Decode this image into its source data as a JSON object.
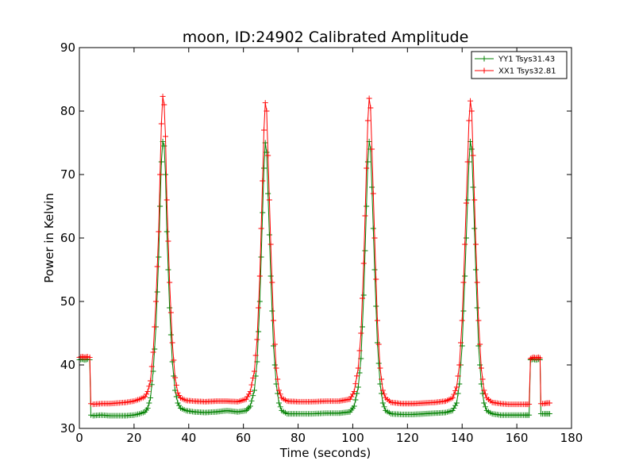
{
  "chart_data": {
    "type": "line",
    "title": "moon, ID:24902 Calibrated Amplitude",
    "xlabel": "Time (seconds)",
    "ylabel": "Power in Kelvin",
    "xlim": [
      0,
      180
    ],
    "ylim": [
      30,
      90
    ],
    "xticks": [
      "0",
      "20",
      "40",
      "60",
      "80",
      "100",
      "120",
      "140",
      "160",
      "180"
    ],
    "yticks": [
      "30",
      "40",
      "50",
      "60",
      "70",
      "80",
      "90"
    ],
    "grid": false,
    "legend_position": "top-right",
    "series": [
      {
        "name": "YY1 Tsys31.43",
        "color": "#008000",
        "marker": "plus",
        "points": [
          [
            0,
            40.8
          ],
          [
            1,
            40.9
          ],
          [
            2,
            40.8
          ],
          [
            3,
            40.9
          ],
          [
            3.8,
            40.8
          ],
          [
            4.2,
            32.1
          ],
          [
            5,
            32.0
          ],
          [
            8,
            32.1
          ],
          [
            11,
            32.0
          ],
          [
            14,
            32.0
          ],
          [
            17,
            32.0
          ],
          [
            20,
            32.1
          ],
          [
            22,
            32.3
          ],
          [
            24,
            32.6
          ],
          [
            25,
            33.2
          ],
          [
            26,
            34.8
          ],
          [
            27,
            39.0
          ],
          [
            28,
            46.0
          ],
          [
            29,
            57.0
          ],
          [
            29.5,
            65.0
          ],
          [
            30,
            72.0
          ],
          [
            30.5,
            75.2
          ],
          [
            31,
            74.5
          ],
          [
            31.5,
            70.0
          ],
          [
            32,
            61.0
          ],
          [
            33,
            49.0
          ],
          [
            34,
            40.5
          ],
          [
            35,
            36.0
          ],
          [
            36,
            34.0
          ],
          [
            37,
            33.2
          ],
          [
            39,
            32.8
          ],
          [
            42,
            32.6
          ],
          [
            46,
            32.5
          ],
          [
            50,
            32.6
          ],
          [
            54,
            32.8
          ],
          [
            58,
            32.6
          ],
          [
            61,
            32.8
          ],
          [
            62.5,
            33.5
          ],
          [
            64,
            36.0
          ],
          [
            65,
            40.5
          ],
          [
            66,
            50.0
          ],
          [
            67,
            64.0
          ],
          [
            67.5,
            71.0
          ],
          [
            68,
            75.0
          ],
          [
            68.5,
            73.5
          ],
          [
            69,
            67.0
          ],
          [
            70,
            54.0
          ],
          [
            71,
            43.0
          ],
          [
            72,
            37.0
          ],
          [
            73,
            34.0
          ],
          [
            74,
            32.8
          ],
          [
            76,
            32.3
          ],
          [
            80,
            32.3
          ],
          [
            85,
            32.3
          ],
          [
            90,
            32.4
          ],
          [
            95,
            32.4
          ],
          [
            99,
            32.6
          ],
          [
            100.5,
            33.5
          ],
          [
            102,
            36.5
          ],
          [
            103,
            41.0
          ],
          [
            104,
            51.0
          ],
          [
            105,
            65.0
          ],
          [
            105.5,
            72.0
          ],
          [
            106,
            75.2
          ],
          [
            106.5,
            74.0
          ],
          [
            107,
            68.0
          ],
          [
            108,
            55.0
          ],
          [
            109,
            43.5
          ],
          [
            110,
            37.0
          ],
          [
            111,
            34.0
          ],
          [
            112,
            32.8
          ],
          [
            114,
            32.3
          ],
          [
            118,
            32.2
          ],
          [
            122,
            32.2
          ],
          [
            126,
            32.3
          ],
          [
            130,
            32.4
          ],
          [
            134,
            32.5
          ],
          [
            136.5,
            32.8
          ],
          [
            138,
            34.0
          ],
          [
            139,
            37.0
          ],
          [
            140,
            43.0
          ],
          [
            141,
            54.0
          ],
          [
            142,
            66.0
          ],
          [
            142.5,
            72.0
          ],
          [
            143,
            75.2
          ],
          [
            143.5,
            74.0
          ],
          [
            144,
            68.0
          ],
          [
            145,
            55.0
          ],
          [
            146,
            43.0
          ],
          [
            147,
            37.0
          ],
          [
            148,
            34.0
          ],
          [
            149,
            32.8
          ],
          [
            151,
            32.3
          ],
          [
            154,
            32.1
          ],
          [
            157,
            32.1
          ],
          [
            160,
            32.1
          ],
          [
            163,
            32.1
          ],
          [
            164.5,
            32.1
          ],
          [
            165,
            40.8
          ],
          [
            166,
            40.9
          ],
          [
            167,
            40.8
          ],
          [
            168,
            40.9
          ],
          [
            168.5,
            40.8
          ],
          [
            168.8,
            32.3
          ],
          [
            170,
            32.3
          ],
          [
            171,
            32.3
          ],
          [
            172,
            32.3
          ]
        ]
      },
      {
        "name": "XX1 Tsys32.81",
        "color": "#ff0000",
        "marker": "plus",
        "points": [
          [
            0,
            41.2
          ],
          [
            1,
            41.3
          ],
          [
            2,
            41.2
          ],
          [
            3,
            41.3
          ],
          [
            3.8,
            41.2
          ],
          [
            4.2,
            33.9
          ],
          [
            5,
            33.8
          ],
          [
            8,
            33.9
          ],
          [
            11,
            33.9
          ],
          [
            14,
            34.0
          ],
          [
            17,
            34.1
          ],
          [
            20,
            34.3
          ],
          [
            22,
            34.6
          ],
          [
            24,
            35.0
          ],
          [
            25,
            35.8
          ],
          [
            26,
            37.5
          ],
          [
            27,
            42.0
          ],
          [
            28,
            50.0
          ],
          [
            29,
            61.0
          ],
          [
            29.5,
            70.0
          ],
          [
            30,
            78.0
          ],
          [
            30.5,
            82.3
          ],
          [
            31,
            81.0
          ],
          [
            31.5,
            76.0
          ],
          [
            32,
            66.0
          ],
          [
            33,
            53.0
          ],
          [
            34,
            43.5
          ],
          [
            35,
            38.0
          ],
          [
            36,
            35.6
          ],
          [
            37,
            34.8
          ],
          [
            39,
            34.4
          ],
          [
            42,
            34.3
          ],
          [
            46,
            34.2
          ],
          [
            50,
            34.3
          ],
          [
            54,
            34.3
          ],
          [
            58,
            34.2
          ],
          [
            61,
            34.6
          ],
          [
            62.5,
            35.8
          ],
          [
            64,
            39.0
          ],
          [
            65,
            44.0
          ],
          [
            66,
            54.0
          ],
          [
            67,
            69.0
          ],
          [
            67.5,
            77.0
          ],
          [
            68,
            81.3
          ],
          [
            68.5,
            80.0
          ],
          [
            69,
            73.0
          ],
          [
            70,
            59.0
          ],
          [
            71,
            47.0
          ],
          [
            72,
            39.5
          ],
          [
            73,
            36.0
          ],
          [
            74,
            34.8
          ],
          [
            76,
            34.3
          ],
          [
            80,
            34.2
          ],
          [
            85,
            34.2
          ],
          [
            90,
            34.3
          ],
          [
            95,
            34.3
          ],
          [
            99,
            34.6
          ],
          [
            100.5,
            35.8
          ],
          [
            102,
            39.5
          ],
          [
            103,
            45.0
          ],
          [
            104,
            56.0
          ],
          [
            105,
            71.0
          ],
          [
            105.5,
            78.5
          ],
          [
            106,
            82.0
          ],
          [
            106.5,
            80.5
          ],
          [
            107,
            74.0
          ],
          [
            108,
            60.0
          ],
          [
            109,
            47.0
          ],
          [
            110,
            39.5
          ],
          [
            111,
            36.0
          ],
          [
            112,
            34.8
          ],
          [
            114,
            34.1
          ],
          [
            118,
            33.9
          ],
          [
            122,
            33.9
          ],
          [
            126,
            34.0
          ],
          [
            130,
            34.1
          ],
          [
            134,
            34.3
          ],
          [
            136.5,
            34.8
          ],
          [
            138,
            36.5
          ],
          [
            139,
            40.0
          ],
          [
            140,
            47.0
          ],
          [
            141,
            59.0
          ],
          [
            142,
            72.0
          ],
          [
            142.5,
            78.5
          ],
          [
            143,
            81.6
          ],
          [
            143.5,
            80.0
          ],
          [
            144,
            73.0
          ],
          [
            145,
            59.0
          ],
          [
            146,
            47.0
          ],
          [
            147,
            39.5
          ],
          [
            148,
            36.0
          ],
          [
            149,
            34.8
          ],
          [
            151,
            34.1
          ],
          [
            154,
            33.9
          ],
          [
            157,
            33.8
          ],
          [
            160,
            33.8
          ],
          [
            163,
            33.8
          ],
          [
            164.5,
            33.8
          ],
          [
            165,
            41.0
          ],
          [
            166,
            41.2
          ],
          [
            167,
            41.1
          ],
          [
            168,
            41.2
          ],
          [
            168.5,
            41.1
          ],
          [
            168.8,
            33.9
          ],
          [
            170,
            33.9
          ],
          [
            171,
            34.0
          ],
          [
            172,
            34.0
          ]
        ]
      }
    ]
  }
}
